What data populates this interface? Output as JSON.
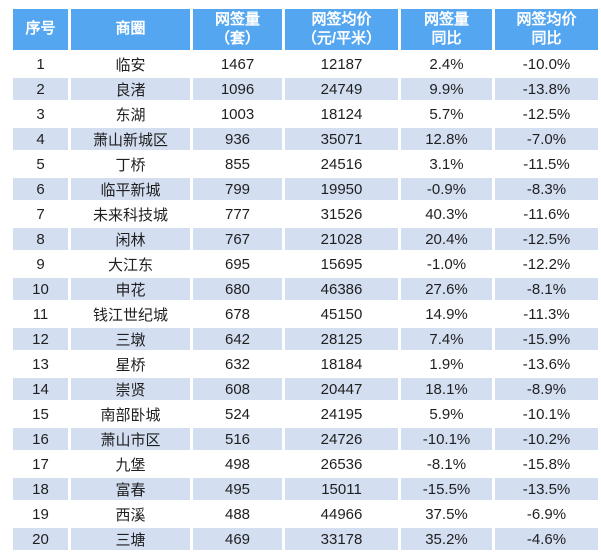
{
  "colors": {
    "header_bg": "#55A6F0",
    "header_text": "#FFFFFF",
    "row_shade_bg": "#D3DEF0",
    "row_plain_bg": "#FFFFFF",
    "body_text": "#1F1F1F",
    "gap_color": "#FFFFFF"
  },
  "table": {
    "header_labels": [
      "序号",
      "商圈",
      "网签量\n（套）",
      "网签均价\n（元/平米）",
      "网签量\n同比",
      "网签均价\n同比"
    ]
  },
  "chart_data": {
    "type": "table",
    "columns": [
      "序号",
      "商圈",
      "网签量（套）",
      "网签均价（元/平米）",
      "网签量同比",
      "网签均价同比"
    ],
    "rows": [
      [
        "1",
        "临安",
        "1467",
        "12187",
        "2.4%",
        "-10.0%"
      ],
      [
        "2",
        "良渚",
        "1096",
        "24749",
        "9.9%",
        "-13.8%"
      ],
      [
        "3",
        "东湖",
        "1003",
        "18124",
        "5.7%",
        "-12.5%"
      ],
      [
        "4",
        "萧山新城区",
        "936",
        "35071",
        "12.8%",
        "-7.0%"
      ],
      [
        "5",
        "丁桥",
        "855",
        "24516",
        "3.1%",
        "-11.5%"
      ],
      [
        "6",
        "临平新城",
        "799",
        "19950",
        "-0.9%",
        "-8.3%"
      ],
      [
        "7",
        "未来科技城",
        "777",
        "31526",
        "40.3%",
        "-11.6%"
      ],
      [
        "8",
        "闲林",
        "767",
        "21028",
        "20.4%",
        "-12.5%"
      ],
      [
        "9",
        "大江东",
        "695",
        "15695",
        "-1.0%",
        "-12.2%"
      ],
      [
        "10",
        "申花",
        "680",
        "46386",
        "27.6%",
        "-8.1%"
      ],
      [
        "11",
        "钱江世纪城",
        "678",
        "45150",
        "14.9%",
        "-11.3%"
      ],
      [
        "12",
        "三墩",
        "642",
        "28125",
        "7.4%",
        "-15.9%"
      ],
      [
        "13",
        "星桥",
        "632",
        "18184",
        "1.9%",
        "-13.6%"
      ],
      [
        "14",
        "崇贤",
        "608",
        "20447",
        "18.1%",
        "-8.9%"
      ],
      [
        "15",
        "南部卧城",
        "524",
        "24195",
        "5.9%",
        "-10.1%"
      ],
      [
        "16",
        "萧山市区",
        "516",
        "24726",
        "-10.1%",
        "-10.2%"
      ],
      [
        "17",
        "九堡",
        "498",
        "26536",
        "-8.1%",
        "-15.8%"
      ],
      [
        "18",
        "富春",
        "495",
        "15011",
        "-15.5%",
        "-13.5%"
      ],
      [
        "19",
        "西溪",
        "488",
        "44966",
        "37.5%",
        "-6.9%"
      ],
      [
        "20",
        "三塘",
        "469",
        "33178",
        "35.2%",
        "-4.6%"
      ]
    ]
  }
}
